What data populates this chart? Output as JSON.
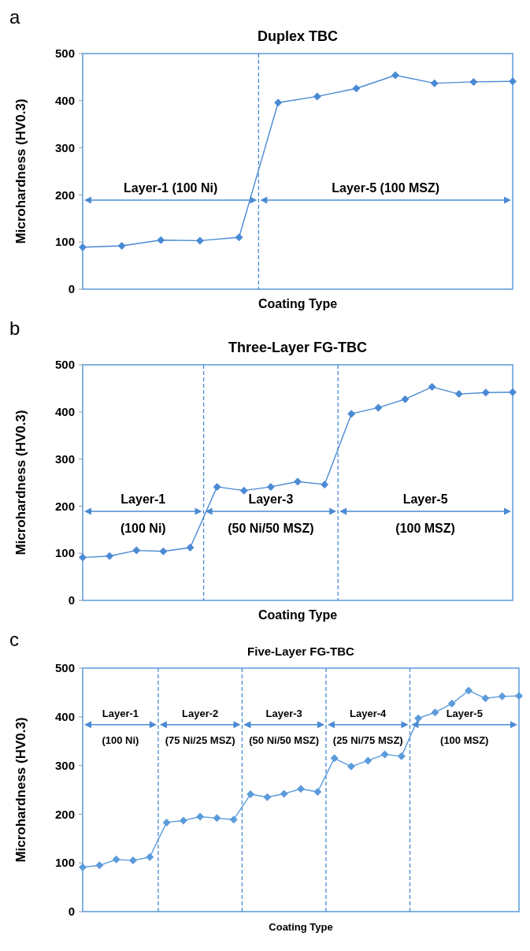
{
  "chart_data": [
    {
      "type": "line",
      "title": "Duplex TBC",
      "xlabel": "Coating Type",
      "ylabel": "Microhardness (HV0.3)",
      "categories": [
        null,
        null,
        null,
        null,
        null,
        null,
        null,
        null,
        null,
        null,
        null,
        null
      ],
      "series": [
        {
          "color": "#4a8ad4",
          "values": [
            89,
            92,
            104,
            103,
            110,
            396,
            409,
            426,
            454,
            437,
            440,
            441
          ]
        }
      ],
      "ylim": [
        0,
        500
      ],
      "yticks": [
        0,
        100,
        200,
        300,
        400,
        500
      ],
      "tick_labels": "y",
      "marker": "diamond",
      "line_style": "solid",
      "annotations": [
        "a",
        "Layer-1 (100 Ni)",
        "Layer-5 (100 MSZ)"
      ]
    },
    {
      "type": "line",
      "title": "Three-Layer FG-TBC",
      "xlabel": "Coating Type",
      "ylabel": "Microhardness (HV0.3)",
      "categories": [
        null,
        null,
        null,
        null,
        null,
        null,
        null,
        null,
        null,
        null,
        null,
        null,
        null,
        null,
        null,
        null,
        null
      ],
      "series": [
        {
          "color": "#4a8ad4",
          "values": [
            91,
            94,
            106,
            104,
            112,
            241,
            233,
            241,
            252,
            246,
            396,
            409,
            427,
            453,
            438,
            441,
            442
          ]
        }
      ],
      "ylim": [
        0,
        500
      ],
      "yticks": [
        0,
        100,
        200,
        300,
        400,
        500
      ],
      "tick_labels": "y",
      "marker": "diamond",
      "line_style": "solid",
      "annotations": [
        "b",
        "Layer-1",
        "(100 Ni)",
        "Layer-3",
        "(50 Ni/50 MSZ)",
        "Layer-5",
        "(100 MSZ)"
      ]
    },
    {
      "type": "line",
      "title": "Five-Layer  FG-TBC",
      "xlabel": "Coating Type",
      "ylabel": "Microhardness (HV0.3)",
      "categories": [
        null,
        null,
        null,
        null,
        null,
        null,
        null,
        null,
        null,
        null,
        null,
        null,
        null,
        null,
        null,
        null,
        null,
        null,
        null,
        null,
        null,
        null,
        null,
        null,
        null,
        null,
        null
      ],
      "series": [
        {
          "color": "#5b9bdc",
          "values": [
            91,
            95,
            107,
            105,
            112,
            183,
            187,
            195,
            192,
            189,
            241,
            235,
            242,
            252,
            246,
            315,
            298,
            310,
            323,
            319,
            397,
            409,
            427,
            454,
            438,
            442,
            443
          ]
        }
      ],
      "ylim": [
        0,
        500
      ],
      "yticks": [
        0,
        100,
        200,
        300,
        400,
        500
      ],
      "tick_labels": "y",
      "marker": "diamond",
      "line_style": "solid",
      "annotations": [
        "c",
        "Layer-1",
        "(100 Ni)",
        "Layer-2",
        "(75 Ni/25 MSZ)",
        "Layer-3",
        "(50 Ni/50 MSZ)",
        "Layer-4",
        "(25 Ni/75 MSZ)",
        "Layer-5",
        "(100 MSZ)"
      ]
    }
  ]
}
